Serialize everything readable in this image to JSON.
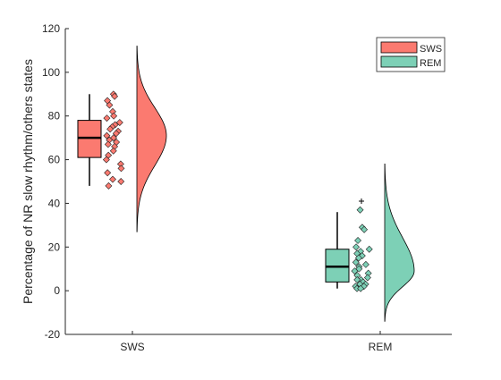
{
  "chart_data": {
    "type": "raincloud",
    "title": "",
    "xlabel": "",
    "ylabel": "Percentage of NR slow rhythm/others states",
    "ylim": [
      -20,
      120
    ],
    "yticks": [
      -20,
      0,
      20,
      40,
      60,
      80,
      100,
      120
    ],
    "categories": [
      "SWS",
      "REM"
    ],
    "grid": false,
    "legend_position": "top-right",
    "series": [
      {
        "name": "SWS",
        "color": "#fb7a70",
        "box": {
          "whisker_low": 48,
          "q1": 61,
          "median": 70,
          "q3": 78,
          "whisker_high": 90,
          "outliers": []
        },
        "density": {
          "y_range": [
            27,
            112
          ],
          "peak_y": 71,
          "peak_width": 1.0
        },
        "points": [
          90,
          89,
          87,
          85,
          82,
          80,
          79,
          77,
          76,
          75,
          74,
          73,
          72,
          71,
          70,
          69,
          68,
          67,
          66,
          64,
          62,
          60,
          58,
          56,
          54,
          51,
          50,
          48
        ]
      },
      {
        "name": "REM",
        "color": "#7dd0b6",
        "box": {
          "whisker_low": 1,
          "q1": 4,
          "median": 11,
          "q3": 19,
          "whisker_high": 36,
          "outliers": [
            41
          ]
        },
        "density": {
          "y_range": [
            -14,
            58
          ],
          "peak_y": 9,
          "peak_width": 1.0
        },
        "points": [
          37,
          29,
          28,
          23,
          20,
          19,
          18,
          17,
          16,
          15,
          13,
          12,
          11,
          10,
          9,
          8,
          7,
          6,
          5,
          5,
          4,
          3,
          3,
          2,
          2,
          1,
          1
        ]
      }
    ]
  }
}
